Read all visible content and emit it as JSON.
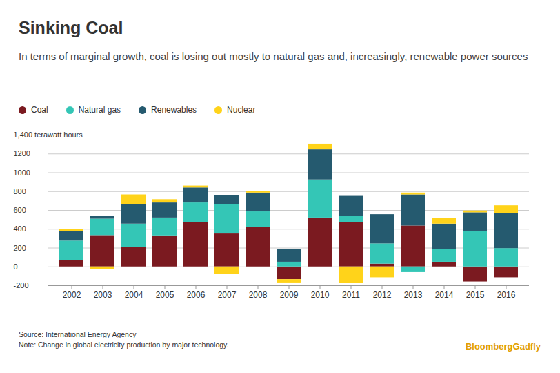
{
  "chart_data": {
    "type": "bar",
    "stacked": true,
    "title": "Sinking Coal",
    "subtitle": "In terms of marginal growth, coal is losing out mostly to natural gas and, increasingly, renewable power sources",
    "source": "Source: International Energy Agency",
    "note": "Note: Change in global electricity production by major technology.",
    "credit": "BloombergGadfly",
    "categories": [
      "2002",
      "2003",
      "2004",
      "2005",
      "2006",
      "2007",
      "2008",
      "2009",
      "2010",
      "2011",
      "2012",
      "2013",
      "2014",
      "2015",
      "2016"
    ],
    "series": [
      {
        "name": "Coal",
        "color": "#7b1a20",
        "values": [
          70,
          333,
          210,
          330,
          470,
          350,
          420,
          -135,
          520,
          470,
          30,
          435,
          50,
          -160,
          -115
        ]
      },
      {
        "name": "Natural gas",
        "color": "#34c6b6",
        "values": [
          205,
          175,
          245,
          190,
          210,
          310,
          165,
          50,
          405,
          65,
          215,
          -60,
          135,
          380,
          195
        ]
      },
      {
        "name": "Renewables",
        "color": "#255a6f",
        "values": [
          100,
          30,
          210,
          160,
          160,
          100,
          200,
          135,
          320,
          215,
          310,
          330,
          270,
          195,
          375
        ]
      },
      {
        "name": "Nuclear",
        "color": "#ffd31a",
        "values": [
          20,
          -25,
          100,
          35,
          20,
          -80,
          15,
          -35,
          60,
          -175,
          -115,
          20,
          60,
          20,
          80
        ]
      }
    ],
    "ylim": [
      -200,
      1400
    ],
    "yticks": [
      -200,
      0,
      200,
      400,
      600,
      800,
      {
        "value": 1000,
        "label": "1000"
      },
      {
        "value": 1200,
        "label": "1200"
      },
      {
        "value": 1400,
        "label": "1,400 terawatt hours"
      }
    ],
    "grid": true,
    "legend": "top-left"
  }
}
